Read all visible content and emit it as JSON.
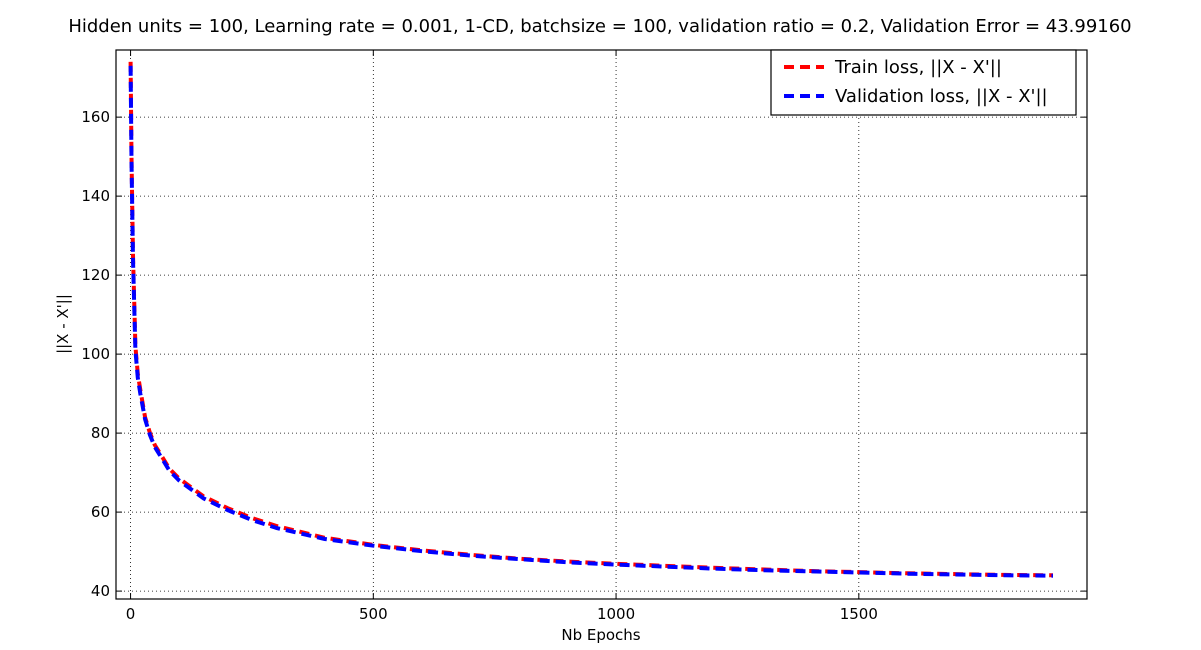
{
  "chart_data": {
    "type": "line",
    "title": "Hidden units = 100, Learning rate = 0.001, 1-CD, batchsize = 100, validation ratio = 0.2, Validation Error = 43.99160",
    "xlabel": "Nb Epochs",
    "ylabel": "||X - X'||",
    "xlim": [
      -30,
      1970
    ],
    "ylim": [
      38,
      177
    ],
    "xticks": [
      0,
      500,
      1000,
      1500
    ],
    "yticks": [
      40,
      60,
      80,
      100,
      120,
      140,
      160
    ],
    "grid": true,
    "legend_position": "top-right",
    "series": [
      {
        "name": "Train loss, ||X - X'||",
        "color": "#ff0000",
        "x": [
          0,
          2,
          5,
          10,
          15,
          20,
          30,
          40,
          50,
          60,
          80,
          100,
          150,
          200,
          250,
          300,
          400,
          500,
          600,
          700,
          800,
          900,
          1000,
          1100,
          1200,
          1300,
          1400,
          1500,
          1600,
          1700,
          1800,
          1900
        ],
        "y": [
          174,
          150,
          125,
          102,
          95,
          91,
          84,
          80,
          77,
          75,
          71,
          68.5,
          64,
          61,
          58.5,
          56.5,
          53.5,
          51.7,
          50.3,
          49.2,
          48.2,
          47.5,
          46.9,
          46.4,
          45.9,
          45.5,
          45.1,
          44.8,
          44.5,
          44.3,
          44.1,
          44.0
        ]
      },
      {
        "name": "Validation loss, ||X - X'||",
        "color": "#0000ff",
        "x": [
          0,
          2,
          5,
          10,
          15,
          20,
          30,
          40,
          50,
          60,
          80,
          100,
          150,
          200,
          250,
          300,
          400,
          500,
          600,
          700,
          800,
          900,
          1000,
          1100,
          1200,
          1300,
          1400,
          1500,
          1600,
          1700,
          1800,
          1900
        ],
        "y": [
          173,
          149,
          124,
          101,
          94,
          90,
          83.5,
          79.5,
          76.5,
          74.5,
          70.5,
          68,
          63.5,
          60.5,
          58,
          56,
          53.2,
          51.5,
          50.1,
          49.0,
          48.1,
          47.3,
          46.7,
          46.2,
          45.7,
          45.3,
          45.0,
          44.7,
          44.4,
          44.2,
          44.0,
          43.9
        ]
      }
    ]
  }
}
